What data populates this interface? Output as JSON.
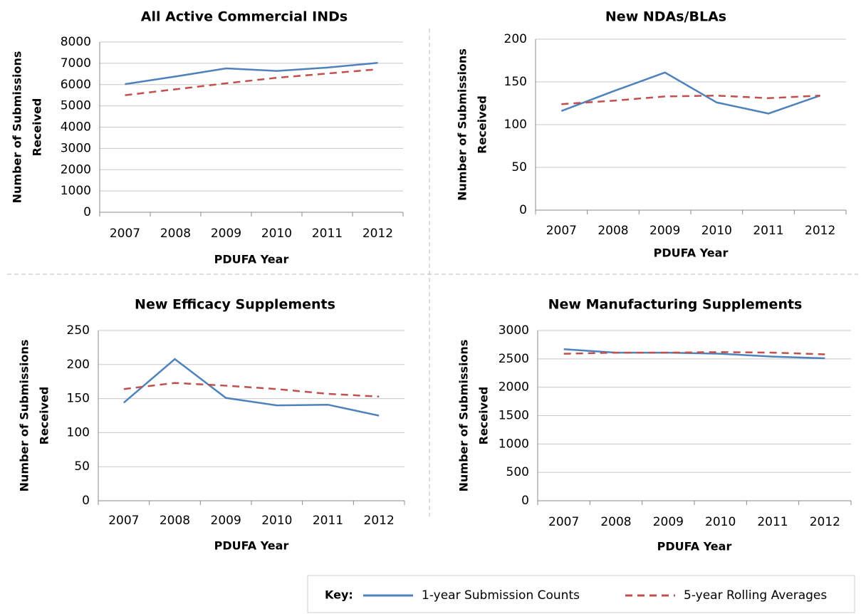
{
  "chart_data": [
    {
      "type": "line",
      "title": "All Active Commercial INDs",
      "xlabel": "PDUFA Year",
      "ylabel": [
        "Number of Submissions",
        "Received"
      ],
      "categories": [
        "2007",
        "2008",
        "2009",
        "2010",
        "2011",
        "2012"
      ],
      "series": [
        {
          "color": "#4f81bd",
          "values": [
            6020,
            6380,
            6760,
            6640,
            6800,
            7020
          ]
        },
        {
          "color": "#c0504d",
          "values": [
            5500,
            5780,
            6060,
            6320,
            6520,
            6720
          ]
        }
      ],
      "ylim": [
        0,
        8000
      ],
      "yticks": [
        0,
        1000,
        2000,
        3000,
        4000,
        5000,
        6000,
        7000,
        8000
      ],
      "grid": true
    },
    {
      "type": "line",
      "title": "New NDAs/BLAs",
      "xlabel": "PDUFA Year",
      "ylabel": [
        "Number of Submissions",
        "Received"
      ],
      "categories": [
        "2007",
        "2008",
        "2009",
        "2010",
        "2011",
        "2012"
      ],
      "series": [
        {
          "color": "#4f81bd",
          "values": [
            116,
            139,
            161,
            126,
            113,
            134
          ]
        },
        {
          "color": "#c0504d",
          "values": [
            124,
            128,
            133,
            134,
            131,
            134
          ]
        }
      ],
      "ylim": [
        0,
        200
      ],
      "yticks": [
        0,
        50,
        100,
        150,
        200
      ],
      "grid": true
    },
    {
      "type": "line",
      "title": "New Efficacy Supplements",
      "xlabel": "PDUFA Year",
      "ylabel": [
        "Number of Submissions",
        "Received"
      ],
      "categories": [
        "2007",
        "2008",
        "2009",
        "2010",
        "2011",
        "2012"
      ],
      "series": [
        {
          "color": "#4f81bd",
          "values": [
            144,
            208,
            151,
            140,
            141,
            125
          ]
        },
        {
          "color": "#c0504d",
          "values": [
            164,
            173,
            169,
            164,
            157,
            153
          ]
        }
      ],
      "ylim": [
        0,
        250
      ],
      "yticks": [
        0,
        50,
        100,
        150,
        200,
        250
      ],
      "grid": true
    },
    {
      "type": "line",
      "title": "New Manufacturing Supplements",
      "xlabel": "PDUFA Year",
      "ylabel": [
        "Number of Submissions",
        "Received"
      ],
      "categories": [
        "2007",
        "2008",
        "2009",
        "2010",
        "2011",
        "2012"
      ],
      "series": [
        {
          "color": "#4f81bd",
          "values": [
            2670,
            2610,
            2610,
            2590,
            2540,
            2510
          ]
        },
        {
          "color": "#c0504d",
          "values": [
            2590,
            2610,
            2610,
            2620,
            2610,
            2580
          ]
        }
      ],
      "ylim": [
        0,
        3000
      ],
      "yticks": [
        0,
        500,
        1000,
        1500,
        2000,
        2500,
        3000
      ],
      "grid": true
    }
  ],
  "key": {
    "label": "Key:",
    "series": [
      {
        "name": "1-year Submission Counts",
        "color": "#4f81bd",
        "style": "solid"
      },
      {
        "name": "5-year Rolling Averages",
        "color": "#c0504d",
        "style": "dashed"
      }
    ]
  }
}
